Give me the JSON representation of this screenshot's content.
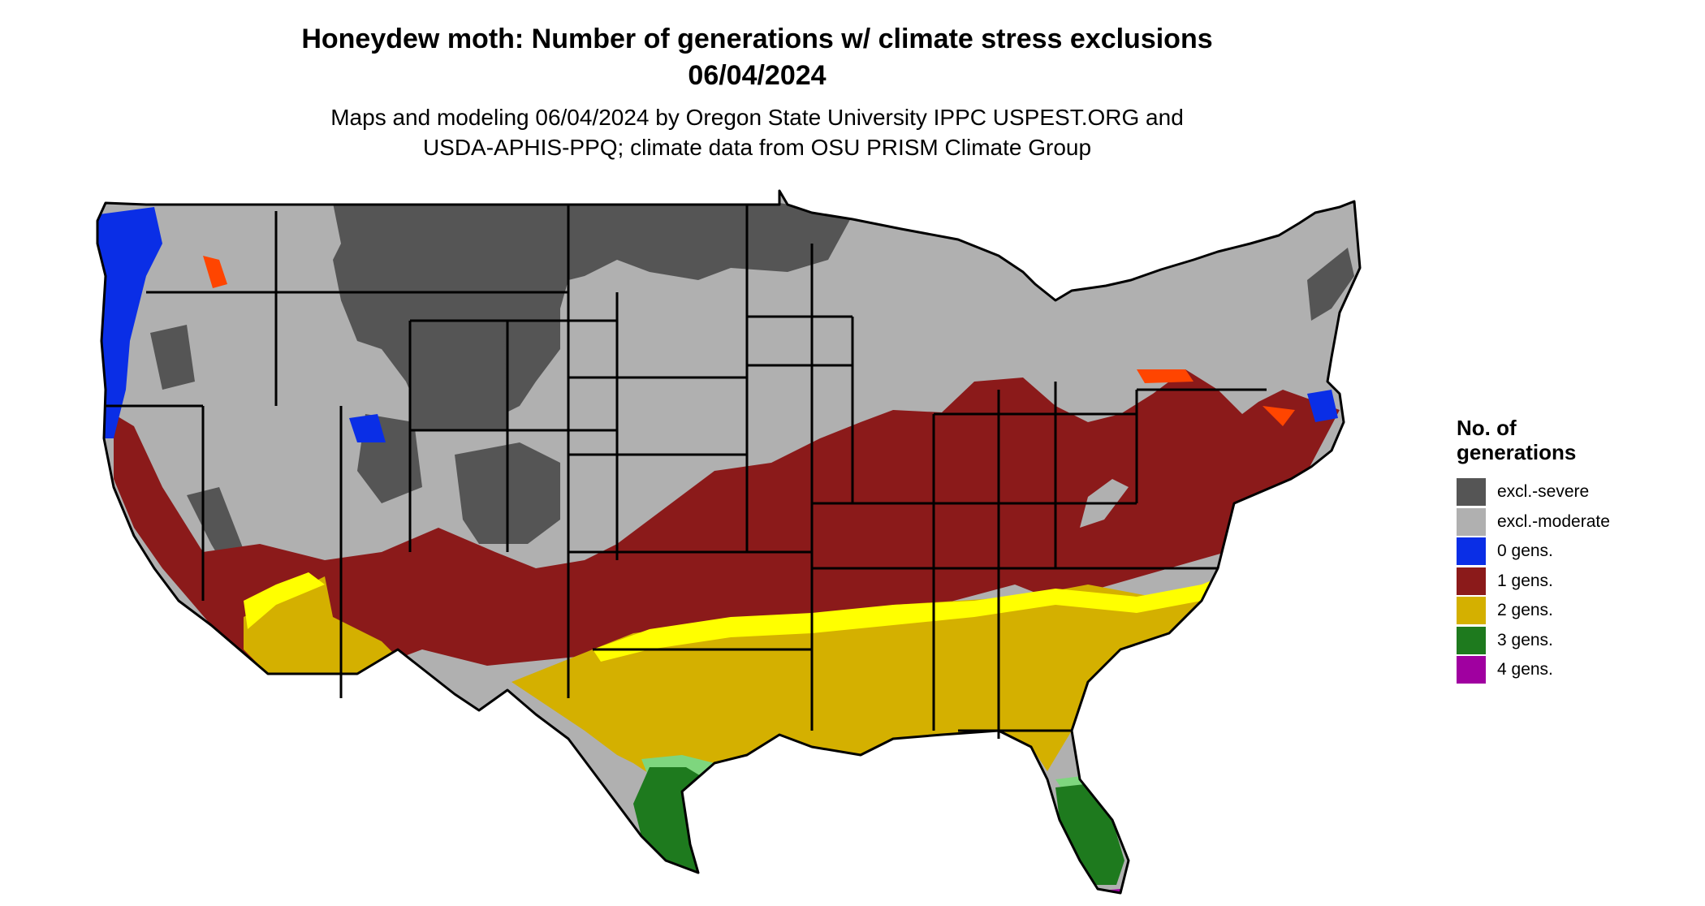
{
  "title": {
    "line1": "Honeydew moth: Number of generations w/ climate stress exclusions",
    "line2": "06/04/2024"
  },
  "subtitle": {
    "line1": "Maps and modeling 06/04/2024 by Oregon State University IPPC USPEST.ORG and",
    "line2": "USDA-APHIS-PPQ; climate data from OSU PRISM Climate Group"
  },
  "legend": {
    "title": "No. of generations",
    "items": [
      {
        "label": "excl.-severe",
        "color": "#555555"
      },
      {
        "label": "excl.-moderate",
        "color": "#b0b0b0"
      },
      {
        "label": "0 gens.",
        "color": "#0a2ee6"
      },
      {
        "label": "1 gens.",
        "color": "#8b1a1a"
      },
      {
        "label": "2 gens.",
        "color": "#d4b000"
      },
      {
        "label": "3 gens.",
        "color": "#1e7a1e"
      },
      {
        "label": "4 gens.",
        "color": "#a000a0"
      }
    ]
  },
  "map_colors": {
    "bright_yellow": "#ffff00",
    "light_green": "#7ed67e",
    "dark_green": "#0f5c0f",
    "orange_red": "#ff4500",
    "boundary": "#000000"
  }
}
